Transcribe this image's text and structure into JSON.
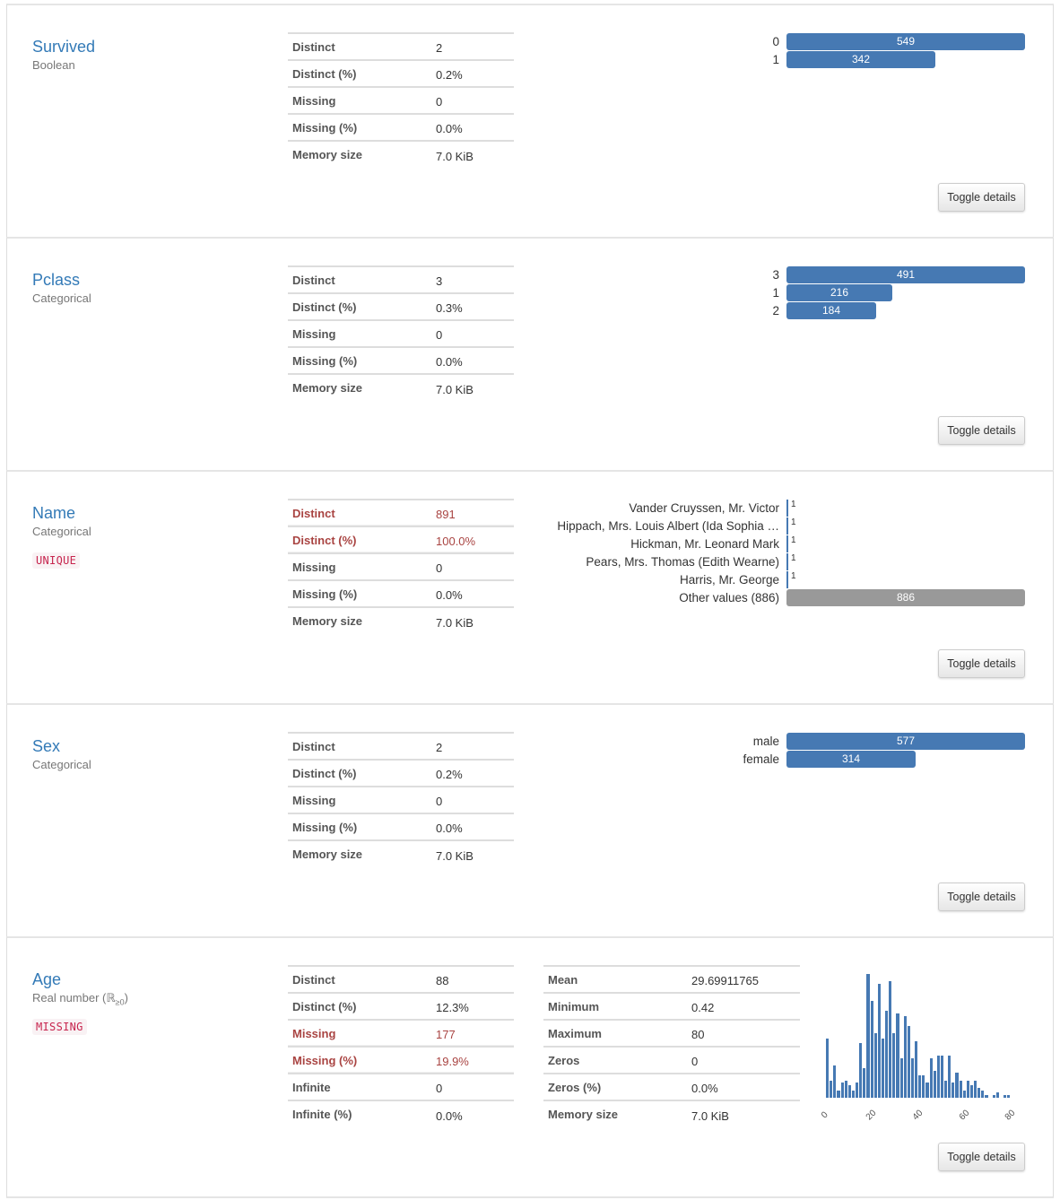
{
  "variables": [
    {
      "name": "Survived",
      "type": "Boolean",
      "stats": [
        {
          "label": "Distinct",
          "value": "2"
        },
        {
          "label": "Distinct (%)",
          "value": "0.2%"
        },
        {
          "label": "Missing",
          "value": "0"
        },
        {
          "label": "Missing (%)",
          "value": "0.0%"
        },
        {
          "label": "Memory size",
          "value": "7.0 KiB"
        }
      ],
      "freq": [
        {
          "label": "0",
          "count": "549"
        },
        {
          "label": "1",
          "count": "342"
        }
      ],
      "toggle_label": "Toggle details"
    },
    {
      "name": "Pclass",
      "type": "Categorical",
      "stats": [
        {
          "label": "Distinct",
          "value": "3"
        },
        {
          "label": "Distinct (%)",
          "value": "0.3%"
        },
        {
          "label": "Missing",
          "value": "0"
        },
        {
          "label": "Missing (%)",
          "value": "0.0%"
        },
        {
          "label": "Memory size",
          "value": "7.0 KiB"
        }
      ],
      "freq": [
        {
          "label": "3",
          "count": "491"
        },
        {
          "label": "1",
          "count": "216"
        },
        {
          "label": "2",
          "count": "184"
        }
      ],
      "toggle_label": "Toggle details"
    },
    {
      "name": "Name",
      "type": "Categorical",
      "badge": "UNIQUE",
      "stats": [
        {
          "label": "Distinct",
          "value": "891",
          "alert": true
        },
        {
          "label": "Distinct (%)",
          "value": "100.0%",
          "alert": true
        },
        {
          "label": "Missing",
          "value": "0"
        },
        {
          "label": "Missing (%)",
          "value": "0.0%"
        },
        {
          "label": "Memory size",
          "value": "7.0 KiB"
        }
      ],
      "freq": [
        {
          "label": "Vander Cruyssen, Mr. Victor",
          "count": "1"
        },
        {
          "label": "Hippach, Mrs. Louis Albert (Ida Sophia …",
          "count": "1"
        },
        {
          "label": "Hickman, Mr. Leonard Mark",
          "count": "1"
        },
        {
          "label": "Pears, Mrs. Thomas (Edith Wearne)",
          "count": "1"
        },
        {
          "label": "Harris, Mr. George",
          "count": "1"
        },
        {
          "label": "Other values (886)",
          "count": "886"
        }
      ],
      "toggle_label": "Toggle details"
    },
    {
      "name": "Sex",
      "type": "Categorical",
      "stats": [
        {
          "label": "Distinct",
          "value": "2"
        },
        {
          "label": "Distinct (%)",
          "value": "0.2%"
        },
        {
          "label": "Missing",
          "value": "0"
        },
        {
          "label": "Missing (%)",
          "value": "0.0%"
        },
        {
          "label": "Memory size",
          "value": "7.0 KiB"
        }
      ],
      "freq": [
        {
          "label": "male",
          "count": "577"
        },
        {
          "label": "female",
          "count": "314"
        }
      ],
      "toggle_label": "Toggle details"
    },
    {
      "name": "Age",
      "type": "Real number (ℝ",
      "type_sub": "≥0",
      "type_close": ")",
      "badge": "MISSING",
      "stats": [
        {
          "label": "Distinct",
          "value": "88"
        },
        {
          "label": "Distinct (%)",
          "value": "12.3%"
        },
        {
          "label": "Missing",
          "value": "177",
          "alert": true
        },
        {
          "label": "Missing (%)",
          "value": "19.9%",
          "alert": true
        },
        {
          "label": "Infinite",
          "value": "0"
        },
        {
          "label": "Infinite (%)",
          "value": "0.0%"
        }
      ],
      "stats2": [
        {
          "label": "Mean",
          "value": "29.69911765"
        },
        {
          "label": "Minimum",
          "value": "0.42"
        },
        {
          "label": "Maximum",
          "value": "80"
        },
        {
          "label": "Zeros",
          "value": "0"
        },
        {
          "label": "Zeros (%)",
          "value": "0.0%"
        },
        {
          "label": "Memory size",
          "value": "7.0 KiB"
        }
      ],
      "toggle_label": "Toggle details"
    }
  ],
  "chart_data": [
    {
      "type": "bar",
      "title": "Survived",
      "orientation": "horizontal",
      "categories": [
        "0",
        "1"
      ],
      "values": [
        549,
        342
      ]
    },
    {
      "type": "bar",
      "title": "Pclass",
      "orientation": "horizontal",
      "categories": [
        "3",
        "1",
        "2"
      ],
      "values": [
        491,
        216,
        184
      ]
    },
    {
      "type": "bar",
      "title": "Name",
      "orientation": "horizontal",
      "categories": [
        "Vander Cruyssen, Mr. Victor",
        "Hippach, Mrs. Louis Albert (Ida Sophia …",
        "Hickman, Mr. Leonard Mark",
        "Pears, Mrs. Thomas (Edith Wearne)",
        "Harris, Mr. George",
        "Other values (886)"
      ],
      "values": [
        1,
        1,
        1,
        1,
        1,
        886
      ]
    },
    {
      "type": "bar",
      "title": "Sex",
      "orientation": "horizontal",
      "categories": [
        "male",
        "female"
      ],
      "values": [
        577,
        314
      ]
    },
    {
      "type": "histogram",
      "title": "Age",
      "xlabel": "",
      "ylabel": "",
      "xlim": [
        0,
        80
      ],
      "xticks": [
        "0",
        "20",
        "40",
        "60",
        "80"
      ],
      "grid": false,
      "bins": 50,
      "values": [
        24,
        7,
        13,
        3,
        6,
        7,
        5,
        3,
        6,
        22,
        12,
        50,
        39,
        26,
        46,
        24,
        35,
        47,
        26,
        34,
        16,
        33,
        29,
        16,
        23,
        9,
        9,
        6,
        16,
        11,
        17,
        17,
        7,
        17,
        6,
        10,
        7,
        3,
        7,
        5,
        7,
        4,
        3,
        1,
        0,
        1,
        2,
        0,
        1,
        1
      ]
    }
  ]
}
